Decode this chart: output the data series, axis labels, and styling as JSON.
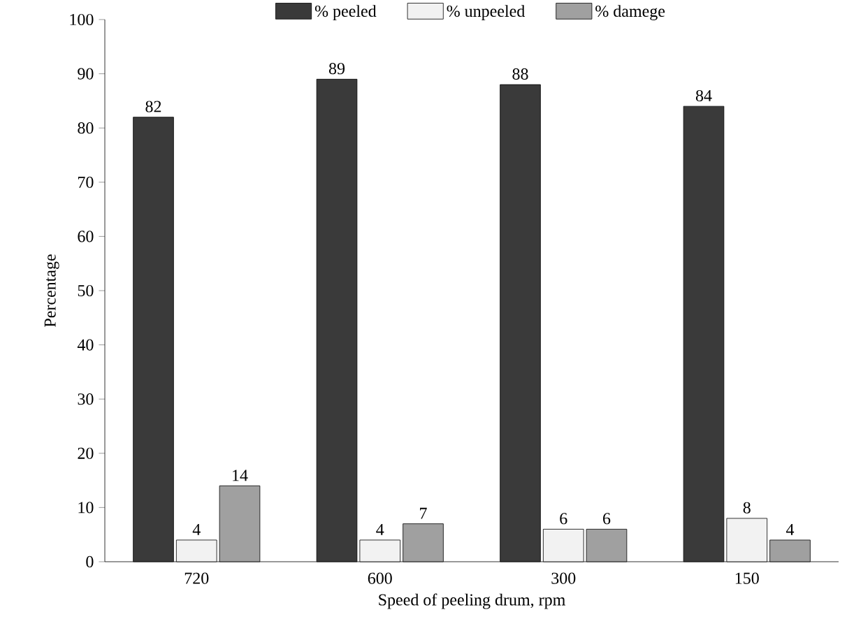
{
  "chart_data": {
    "type": "bar",
    "xlabel": "Speed of peeling drum, rpm",
    "ylabel": "Percentage",
    "categories": [
      "720",
      "600",
      "300",
      "150"
    ],
    "series": [
      {
        "name": "% peeled",
        "color": "#3a3a3a",
        "values": [
          82,
          89,
          88,
          84
        ]
      },
      {
        "name": "% unpeeled",
        "color": "#f2f2f2",
        "values": [
          4,
          4,
          6,
          8
        ]
      },
      {
        "name": "% damege",
        "color": "#a0a0a0",
        "values": [
          14,
          7,
          6,
          4
        ]
      }
    ],
    "ylim": [
      0,
      100
    ],
    "yticks": [
      0,
      10,
      20,
      30,
      40,
      50,
      60,
      70,
      80,
      90,
      100
    ],
    "data_labels": true,
    "grid": false,
    "legend": "top"
  }
}
